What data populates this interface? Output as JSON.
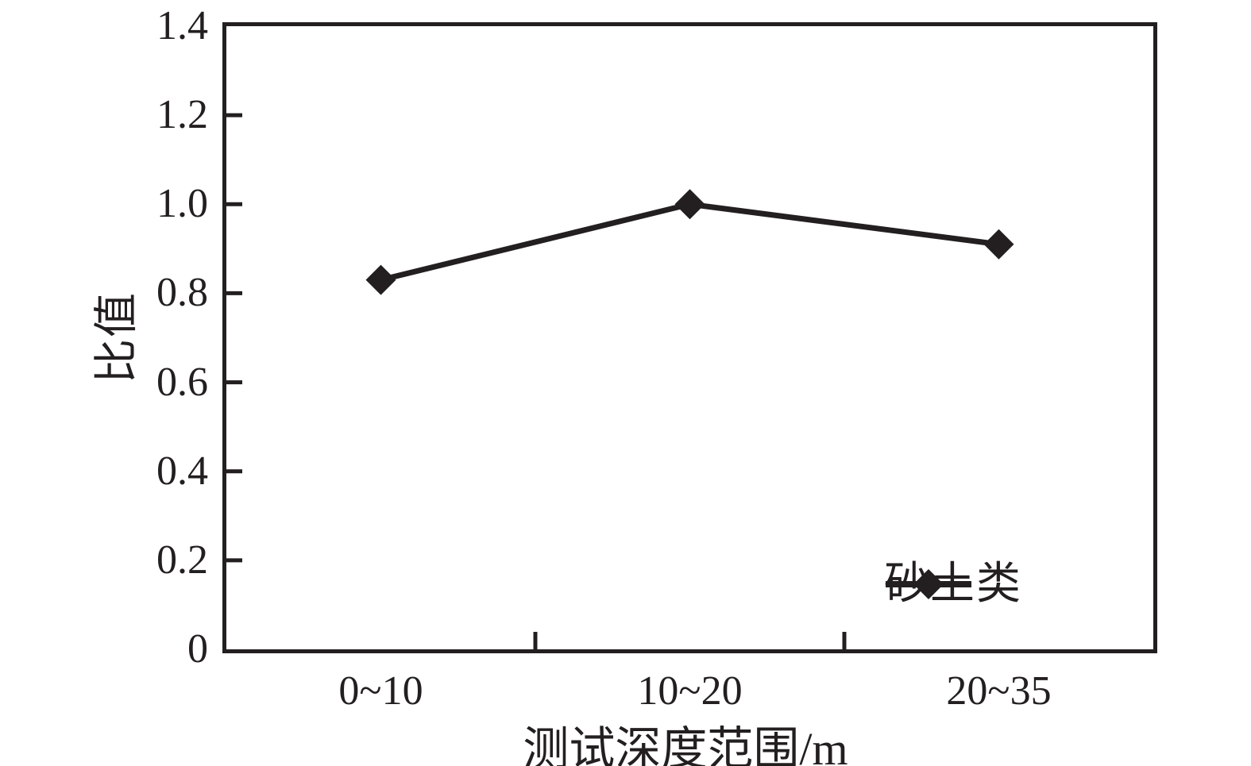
{
  "chart_data": {
    "type": "line",
    "title": "",
    "categories": [
      "0~10",
      "10~20",
      "20~35"
    ],
    "series": [
      {
        "name": "砂土类",
        "values": [
          0.83,
          1.0,
          0.91
        ],
        "marker": "diamond",
        "color": "#231f20"
      }
    ],
    "xlabel": "测试深度范围/m",
    "ylabel": "比值",
    "ylim": [
      0,
      1.4
    ],
    "ytick_step": 0.2,
    "yticks": [
      "0",
      "0.2",
      "0.4",
      "0.6",
      "0.8",
      "1.0",
      "1.2",
      "1.4"
    ],
    "grid": false,
    "tick_direction": "in",
    "legend_position": "inside-bottom-right"
  },
  "colors": {
    "line": "#231f20",
    "axis": "#231f20",
    "text": "#231f20",
    "background": "#ffffff"
  }
}
